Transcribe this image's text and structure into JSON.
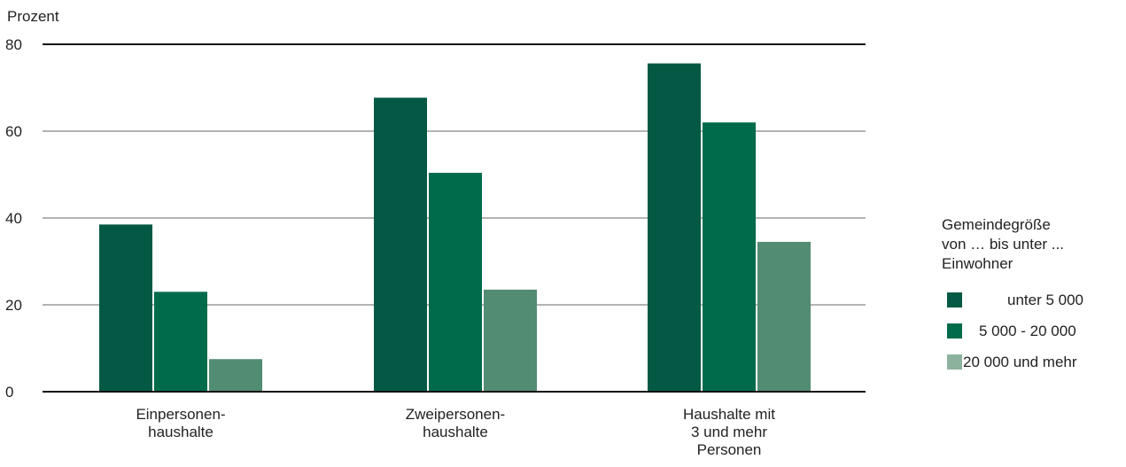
{
  "chart_data": {
    "type": "bar",
    "ylabel": "Prozent",
    "ylim": [
      0,
      80
    ],
    "yticks": [
      "0",
      "20",
      "40",
      "60",
      "80"
    ],
    "grid": true,
    "categories": [
      [
        "Einpersonen-",
        "haushalte"
      ],
      [
        "Zweipersonen-",
        "haushalte"
      ],
      [
        "Haushalte mit",
        "3 und mehr",
        "Personen"
      ]
    ],
    "legend": {
      "title": [
        "Gemeindegröße",
        "von … bis unter ...",
        "Einwohner"
      ],
      "placement": "right"
    },
    "series": [
      {
        "name": "unter 5 000",
        "color": "#035943",
        "values": [
          38.5,
          67.7,
          75.6
        ]
      },
      {
        "name": "5 000 - 20 000",
        "color": "#006b4b",
        "values": [
          23,
          50.4,
          62
        ]
      },
      {
        "name": "20 000 und mehr",
        "color": "#518c73",
        "legend_color": "#8cb29e",
        "values": [
          7.5,
          23.5,
          34.5
        ]
      }
    ]
  }
}
